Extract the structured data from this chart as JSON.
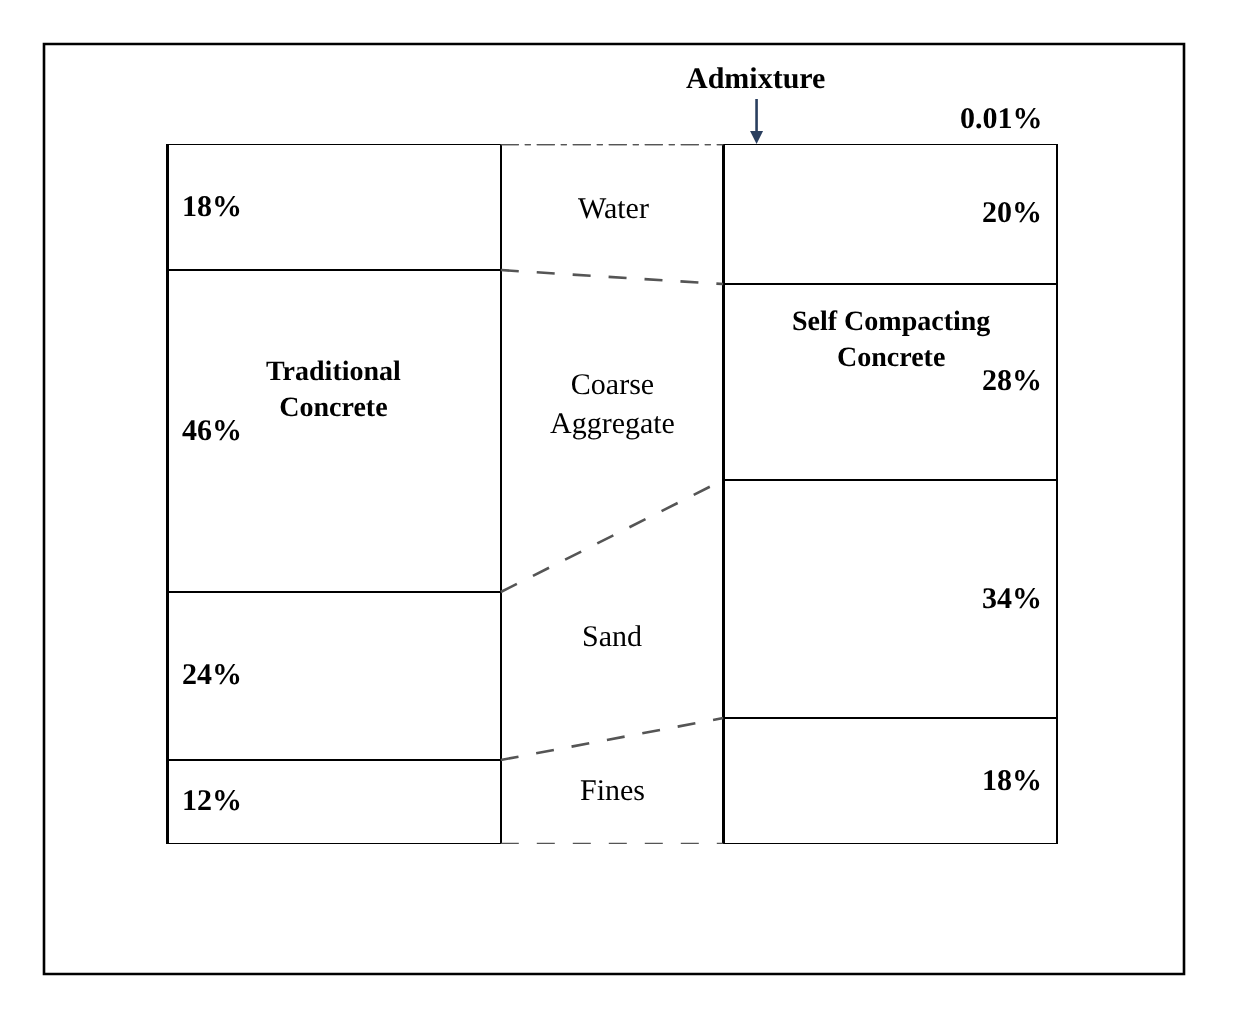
{
  "chart_data": {
    "type": "bar",
    "stacked": true,
    "legend": false,
    "tick_labels": false,
    "data_labels": false,
    "categories": [
      "Traditional Concrete",
      "Self Compacting Concrete"
    ],
    "series": [
      {
        "name": "Fines",
        "color": "#ffffff",
        "values": [
          12,
          18
        ],
        "value_labels": [
          "12%",
          "18%"
        ]
      },
      {
        "name": "Sand",
        "color": "#ffffff",
        "values": [
          24,
          34
        ],
        "value_labels": [
          "24%",
          "34%"
        ]
      },
      {
        "name": "Coarse Aggregate",
        "color": "#ffffff",
        "values": [
          46,
          28
        ],
        "value_labels": [
          "46%",
          "28%"
        ]
      },
      {
        "name": "Water",
        "color": "#ffffff",
        "values": [
          18,
          20
        ],
        "value_labels": [
          "18%",
          "20%"
        ]
      },
      {
        "name": "Admixture",
        "color": "#ffffff",
        "values": [
          null,
          0.01
        ],
        "value_labels": [
          null,
          "0.01%"
        ]
      }
    ]
  }
}
